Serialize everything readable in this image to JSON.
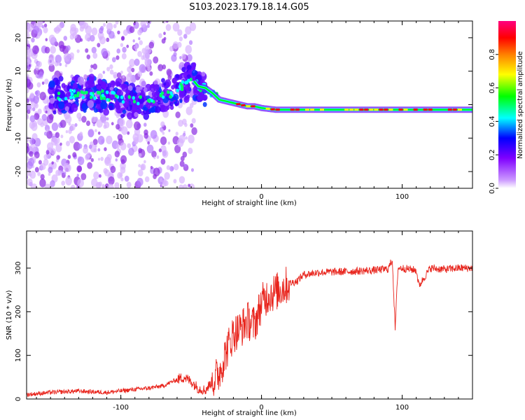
{
  "figure": {
    "title": "S103.2023.179.18.14.G05"
  },
  "chart_data": [
    {
      "type": "heatmap",
      "xlabel": "Height of straight line (km)",
      "ylabel": "Frequency (Hz)",
      "xlim": [
        -167,
        150
      ],
      "ylim": [
        -25,
        25
      ],
      "xticks": [
        -100,
        0,
        100
      ],
      "yticks": [
        -20,
        -10,
        0,
        10,
        20
      ],
      "grid": false,
      "ridge_frequency": {
        "x": [
          -145,
          -130,
          -115,
          -100,
          -90,
          -80,
          -70,
          -60,
          -50,
          -45,
          -40,
          -35,
          -30,
          -25,
          -20,
          -15,
          -10,
          -5,
          0,
          10,
          20,
          40,
          60,
          80,
          100,
          120,
          140
        ],
        "y": [
          2.5,
          3.5,
          3,
          2,
          1,
          1.5,
          2.5,
          4,
          8,
          5.5,
          5,
          3.5,
          1.5,
          1,
          0.5,
          0,
          -0.5,
          -0.5,
          -1,
          -1.5,
          -1.5,
          -1.5,
          -1.5,
          -1.5,
          -1.5,
          -1.5,
          -1.5
        ]
      },
      "colorbar": {
        "label": "Normalized spectral amplitude",
        "range": [
          0,
          1
        ],
        "ticks": [
          0.0,
          0.2,
          0.4,
          0.6,
          0.8
        ],
        "tick_labels": [
          "0.0",
          "0.2",
          "0.4",
          "0.6",
          "0.8"
        ],
        "colormap": [
          "#ffffff",
          "#cc99ff",
          "#7f00ff",
          "#0000ff",
          "#00ffff",
          "#00ff00",
          "#ffff00",
          "#ff8000",
          "#ff0000",
          "#ff0080"
        ]
      }
    },
    {
      "type": "line",
      "xlabel": "Height of straight line (km)",
      "ylabel": "SNR (10 * v/v)",
      "xlim": [
        -167,
        150
      ],
      "ylim": [
        0,
        385
      ],
      "xticks": [
        -100,
        0,
        100
      ],
      "yticks": [
        0,
        100,
        200,
        300
      ],
      "grid": false,
      "series": [
        {
          "color": "#e8241c",
          "x": [
            -167,
            -150,
            -130,
            -110,
            -90,
            -80,
            -70,
            -60,
            -55,
            -50,
            -45,
            -40,
            -35,
            -30,
            -25,
            -20,
            -15,
            -10,
            -5,
            0,
            5,
            10,
            15,
            20,
            25,
            30,
            40,
            60,
            80,
            90,
            93,
            95,
            97,
            100,
            110,
            112,
            120,
            130,
            140,
            150
          ],
          "y": [
            10,
            15,
            18,
            15,
            22,
            25,
            30,
            45,
            50,
            40,
            25,
            20,
            40,
            60,
            110,
            150,
            160,
            180,
            170,
            220,
            240,
            245,
            255,
            265,
            270,
            285,
            290,
            292,
            295,
            298,
            320,
            160,
            300,
            300,
            295,
            260,
            300,
            297,
            300,
            300
          ]
        }
      ]
    }
  ]
}
